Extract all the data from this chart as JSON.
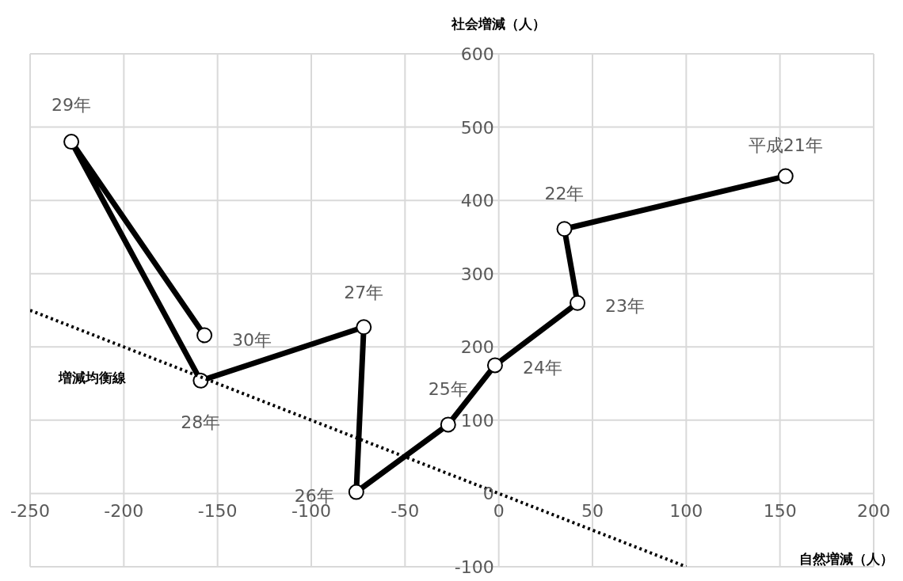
{
  "chart_data": {
    "type": "line",
    "xlabel": "自然増減（人）",
    "ylabel": "社会増減（人）",
    "xlim": [
      -250,
      200
    ],
    "xticks": [
      -250,
      -200,
      -150,
      -100,
      -50,
      0,
      50,
      100,
      150,
      200
    ],
    "ylim": [
      -100,
      600
    ],
    "yticks": [
      -100,
      0,
      100,
      200,
      300,
      400,
      500,
      600
    ],
    "grid": true,
    "series": [
      {
        "type": "line",
        "color": "#000000",
        "marker": "circle",
        "line_style": "solid",
        "x": [
          153,
          35,
          42,
          -2,
          -27,
          -76,
          -72,
          -159,
          -228,
          -157
        ],
        "values": [
          433,
          361,
          260,
          175,
          94,
          2,
          227,
          154,
          480,
          216
        ]
      },
      {
        "type": "line",
        "color": "#000000",
        "marker": "none",
        "line_style": "dotted",
        "x": [
          -250,
          100
        ],
        "values": [
          250,
          -100
        ]
      }
    ],
    "annotations": [
      {
        "text": "平成21年",
        "x": 153,
        "y": 433
      },
      {
        "text": "22年",
        "x": 35,
        "y": 361
      },
      {
        "text": "23年",
        "x": 42,
        "y": 260
      },
      {
        "text": "24年",
        "x": -2,
        "y": 175
      },
      {
        "text": "25年",
        "x": -27,
        "y": 94
      },
      {
        "text": "26年",
        "x": -76,
        "y": 2
      },
      {
        "text": "27年",
        "x": -72,
        "y": 227
      },
      {
        "text": "28年",
        "x": -159,
        "y": 154
      },
      {
        "text": "29年",
        "x": -228,
        "y": 480
      },
      {
        "text": "30年",
        "x": -157,
        "y": 216
      },
      "増減均衡線"
    ]
  }
}
